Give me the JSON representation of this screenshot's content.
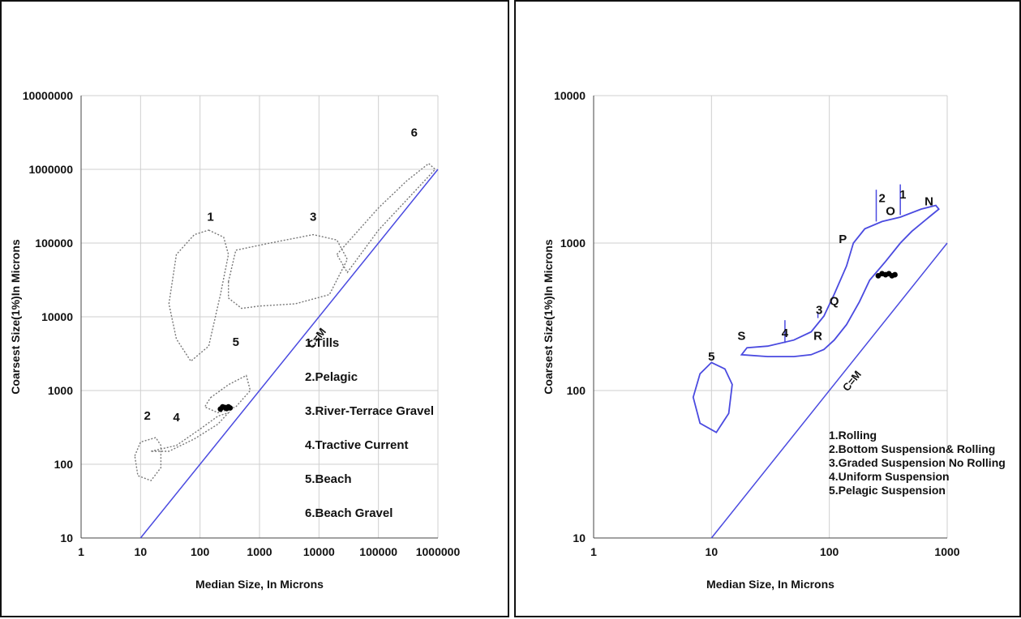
{
  "chart_data": [
    {
      "type": "scatter",
      "xlabel": "Median Size, In Microns",
      "ylabel": "Coarsest Size(1%)In Microns",
      "xscale": "log",
      "yscale": "log",
      "xlim": [
        1,
        1000000
      ],
      "ylim": [
        10,
        10000000
      ],
      "x_ticks": [
        "1",
        "10",
        "100",
        "1000",
        "10000",
        "100000",
        "1000000"
      ],
      "y_ticks": [
        "10",
        "100",
        "1000",
        "10000",
        "100000",
        "1000000",
        "10000000"
      ],
      "grid": true,
      "reference_line": {
        "label": "C=M",
        "points": [
          [
            10,
            10
          ],
          [
            1000000,
            1000000
          ]
        ],
        "color": "#4a4ae0"
      },
      "field_markers": [
        {
          "label": "1",
          "x": 150,
          "y": 200000
        },
        {
          "label": "2",
          "x": 13,
          "y": 400
        },
        {
          "label": "3",
          "x": 8000,
          "y": 200000
        },
        {
          "label": "4",
          "x": 40,
          "y": 380
        },
        {
          "label": "5",
          "x": 400,
          "y": 4000
        },
        {
          "label": "6",
          "x": 400000,
          "y": 2800000
        }
      ],
      "fields": [
        {
          "id": "1",
          "points": [
            [
              140,
              150000
            ],
            [
              250,
              120000
            ],
            [
              300,
              70000
            ],
            [
              220,
              20000
            ],
            [
              140,
              4000
            ],
            [
              70,
              2500
            ],
            [
              40,
              5000
            ],
            [
              30,
              15000
            ],
            [
              40,
              70000
            ],
            [
              80,
              130000
            ]
          ]
        },
        {
          "id": "2",
          "points": [
            [
              8,
              130
            ],
            [
              10,
              200
            ],
            [
              18,
              230
            ],
            [
              22,
              180
            ],
            [
              22,
              90
            ],
            [
              15,
              60
            ],
            [
              9,
              70
            ]
          ]
        },
        {
          "id": "3",
          "points": [
            [
              300,
              30000
            ],
            [
              400,
              80000
            ],
            [
              1500,
              100000
            ],
            [
              8000,
              130000
            ],
            [
              20000,
              110000
            ],
            [
              30000,
              60000
            ],
            [
              15000,
              20000
            ],
            [
              4000,
              15000
            ],
            [
              1000,
              14000
            ],
            [
              500,
              13000
            ],
            [
              300,
              18000
            ]
          ]
        },
        {
          "id": "4",
          "points": [
            [
              15,
              150
            ],
            [
              40,
              180
            ],
            [
              100,
              300
            ],
            [
              200,
              450
            ],
            [
              300,
              500
            ],
            [
              200,
              350
            ],
            [
              80,
              220
            ],
            [
              30,
              150
            ]
          ]
        },
        {
          "id": "5",
          "points": [
            [
              150,
              800
            ],
            [
              300,
              1200
            ],
            [
              600,
              1600
            ],
            [
              700,
              1000
            ],
            [
              400,
              600
            ],
            [
              200,
              500
            ],
            [
              120,
              600
            ]
          ]
        },
        {
          "id": "6",
          "points": [
            [
              20000,
              70000
            ],
            [
              100000,
              300000
            ],
            [
              300000,
              700000
            ],
            [
              700000,
              1200000
            ],
            [
              900000,
              1000000
            ],
            [
              500000,
              600000
            ],
            [
              100000,
              150000
            ],
            [
              30000,
              40000
            ]
          ]
        }
      ],
      "series": [
        {
          "x": [
            220,
            240,
            260,
            280,
            300,
            320
          ],
          "y": [
            560,
            600,
            590,
            570,
            600,
            580
          ]
        }
      ],
      "legend_items": [
        "1.Tills",
        "2.Pelagic",
        "3.River-Terrace Gravel",
        "4.Tractive Current",
        "5.Beach",
        "6.Beach Gravel"
      ],
      "colors": {
        "reference": "#4a4ae0",
        "fields": "#777777",
        "points": "#000000"
      }
    },
    {
      "type": "scatter",
      "xlabel": "Median Size, In Microns",
      "ylabel": "Coarsest Size(1%)In Microns",
      "xscale": "log",
      "yscale": "log",
      "xlim": [
        1,
        1000
      ],
      "ylim": [
        10,
        10000
      ],
      "x_ticks": [
        "1",
        "10",
        "100",
        "1000"
      ],
      "y_ticks": [
        "10",
        "100",
        "1000",
        "10000"
      ],
      "grid": true,
      "reference_line": {
        "label": "C=M",
        "points": [
          [
            10,
            10
          ],
          [
            1000,
            1000
          ]
        ],
        "color": "#4a4ae0"
      },
      "segment_labels": [
        {
          "label": "S",
          "x": 18,
          "y": 220
        },
        {
          "label": "4",
          "x": 42,
          "y": 230
        },
        {
          "label": "R",
          "x": 80,
          "y": 220
        },
        {
          "label": "3",
          "x": 82,
          "y": 330
        },
        {
          "label": "Q",
          "x": 110,
          "y": 380
        },
        {
          "label": "P",
          "x": 130,
          "y": 1000
        },
        {
          "label": "2",
          "x": 280,
          "y": 1900
        },
        {
          "label": "O",
          "x": 330,
          "y": 1550
        },
        {
          "label": "1",
          "x": 420,
          "y": 2000
        },
        {
          "label": "N",
          "x": 700,
          "y": 1800
        },
        {
          "label": "5",
          "x": 10,
          "y": 160
        }
      ],
      "segment_boundaries": [
        {
          "x": 42,
          "y": [
            210,
            300
          ]
        },
        {
          "x": 80,
          "y": [
            310,
            340
          ]
        },
        {
          "x": 250,
          "y": [
            1400,
            2300
          ]
        },
        {
          "x": 400,
          "y": [
            1550,
            2500
          ]
        }
      ],
      "regions": [
        {
          "id": "pattern",
          "points": [
            [
              18,
              175
            ],
            [
              30,
              170
            ],
            [
              50,
              170
            ],
            [
              70,
              175
            ],
            [
              90,
              190
            ],
            [
              110,
              220
            ],
            [
              140,
              280
            ],
            [
              180,
              400
            ],
            [
              220,
              560
            ],
            [
              300,
              750
            ],
            [
              400,
              1000
            ],
            [
              500,
              1200
            ],
            [
              700,
              1500
            ],
            [
              850,
              1700
            ],
            [
              800,
              1800
            ],
            [
              600,
              1700
            ],
            [
              400,
              1500
            ],
            [
              280,
              1400
            ],
            [
              200,
              1250
            ],
            [
              160,
              1000
            ],
            [
              140,
              700
            ],
            [
              110,
              450
            ],
            [
              90,
              320
            ],
            [
              70,
              250
            ],
            [
              50,
              220
            ],
            [
              30,
              200
            ],
            [
              20,
              195
            ]
          ]
        },
        {
          "id": "pelagic",
          "points": [
            [
              10,
              155
            ],
            [
              13,
              140
            ],
            [
              15,
              110
            ],
            [
              14,
              70
            ],
            [
              11,
              52
            ],
            [
              8,
              60
            ],
            [
              7,
              90
            ],
            [
              8,
              130
            ]
          ]
        }
      ],
      "series": [
        {
          "x": [
            260,
            280,
            300,
            320,
            340,
            360
          ],
          "y": [
            600,
            620,
            610,
            620,
            600,
            610
          ]
        }
      ],
      "legend_items": [
        "1.Rolling",
        "2.Bottom Suspension& Rolling",
        "3.Graded Suspension No Rolling",
        "4.Uniform Suspension",
        "5.Pelagic Suspension"
      ],
      "colors": {
        "reference": "#4a4ae0",
        "regions": "#4a4ae0",
        "points": "#000000"
      }
    }
  ]
}
